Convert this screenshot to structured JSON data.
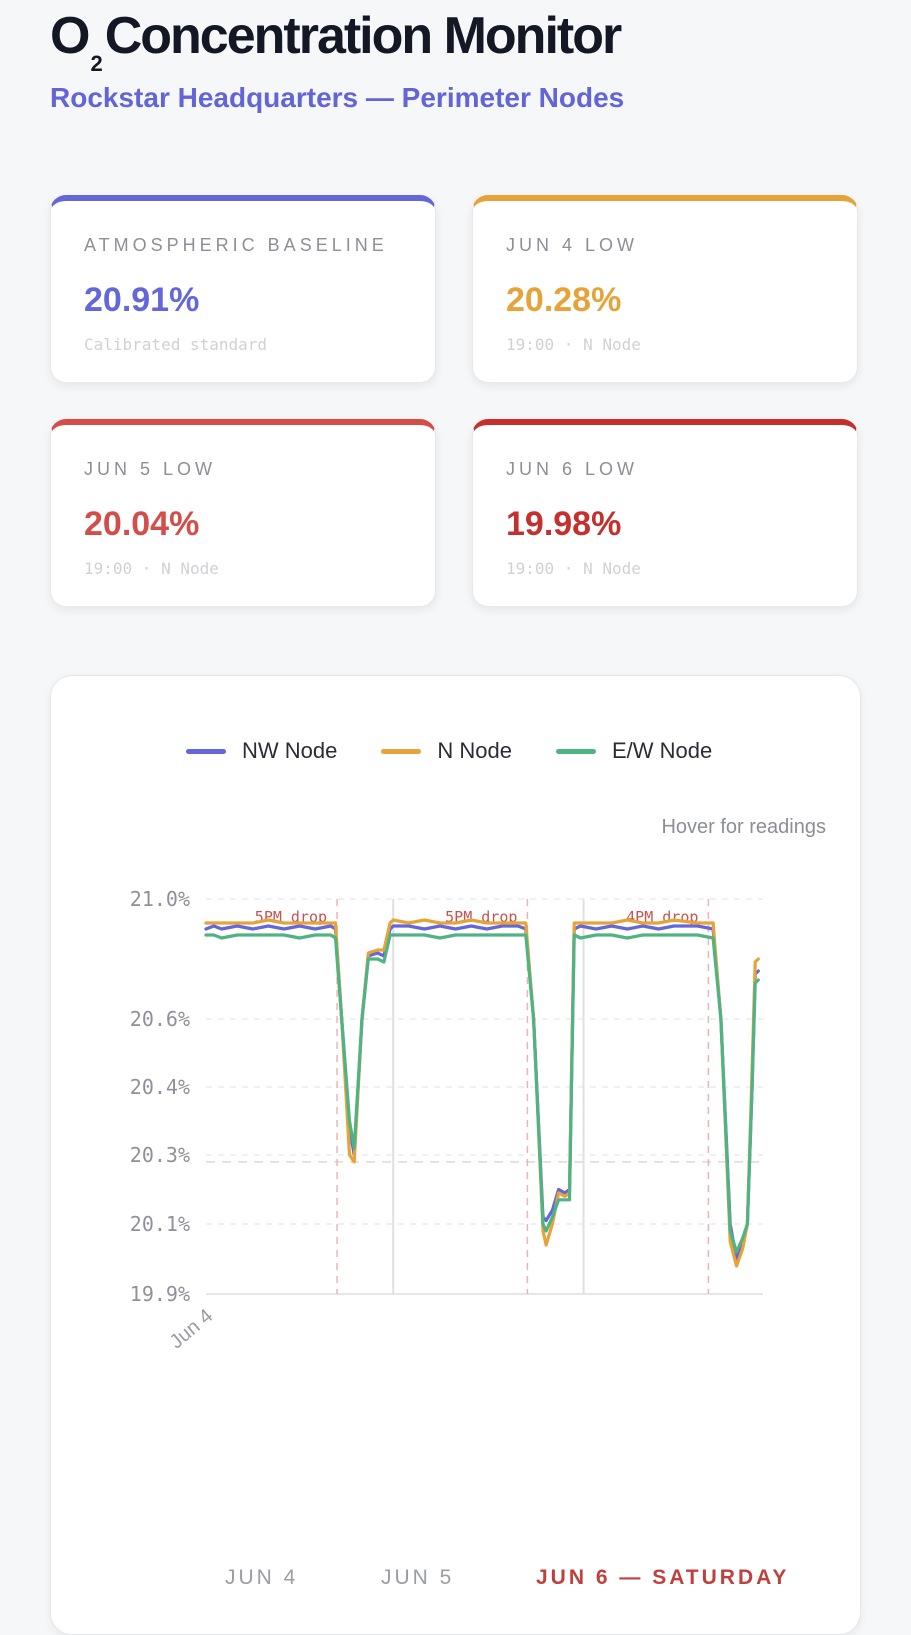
{
  "header": {
    "title_prefix": "O",
    "title_sub": "2",
    "title_main": "Concentration Monitor",
    "subtitle": "Rockstar Headquarters — Perimeter Nodes"
  },
  "cards": [
    {
      "label": "ATMOSPHERIC BASELINE",
      "value": "20.91%",
      "note": "Calibrated standard",
      "accent": "#6466d9"
    },
    {
      "label": "JUN 4 LOW",
      "value": "20.28%",
      "note": "19:00 · N Node",
      "accent": "#e6a33a"
    },
    {
      "label": "JUN 5 LOW",
      "value": "20.04%",
      "note": "19:00 · N Node",
      "accent": "#d44d48"
    },
    {
      "label": "JUN 6 LOW",
      "value": "19.98%",
      "note": "19:00 · N Node",
      "accent": "#c5302c"
    }
  ],
  "chart": {
    "hint": "Hover for readings",
    "day_tabs": [
      {
        "label": "JUN 4",
        "active": false
      },
      {
        "label": "JUN 5",
        "active": false
      },
      {
        "label": "JUN 6 — SATURDAY",
        "active": true
      }
    ]
  },
  "chart_data": {
    "type": "line",
    "x": [
      0,
      1,
      2,
      3,
      4,
      5,
      6,
      7,
      8,
      9,
      10,
      11,
      12,
      13,
      14,
      15,
      16,
      17,
      18,
      19,
      20,
      21,
      22,
      23,
      24,
      25,
      26,
      27,
      28,
      29,
      30,
      31,
      32,
      33,
      34,
      35,
      36,
      37,
      38,
      39,
      40,
      41,
      42,
      43,
      44,
      45,
      46,
      47,
      48,
      49,
      50,
      51,
      52,
      53,
      54,
      55,
      56,
      57,
      58,
      59,
      60,
      61,
      62,
      63,
      64,
      65,
      66,
      67,
      68,
      69,
      70,
      71,
      72,
      73,
      74,
      75,
      76,
      77,
      78,
      79,
      80,
      81,
      82,
      83,
      84,
      85,
      86,
      87,
      88,
      89,
      90,
      91,
      92,
      93,
      94,
      95,
      96,
      97,
      98,
      99,
      100,
      101,
      102,
      103,
      104,
      105,
      106,
      107,
      108,
      109,
      110,
      111,
      112,
      113,
      114,
      115,
      116,
      117,
      118,
      119,
      120,
      121,
      122,
      123,
      124,
      125,
      126,
      127,
      128,
      129,
      130,
      131,
      132,
      133,
      134,
      135,
      136,
      137,
      138,
      139,
      140,
      141,
      142,
      143,
      144,
      145,
      146,
      147,
      148,
      149,
      150,
      151,
      152,
      153,
      154,
      155,
      156,
      157,
      158,
      159,
      160,
      161,
      162,
      163,
      164,
      165,
      166,
      167,
      168,
      169,
      170,
      171,
      172,
      173,
      174,
      175,
      176,
      177,
      178,
      179,
      180,
      181,
      182,
      183,
      184,
      185,
      186,
      187,
      188,
      189,
      190,
      191,
      192,
      193,
      194,
      195,
      196,
      197,
      198,
      199,
      200,
      201,
      202,
      203,
      204,
      205,
      206,
      207,
      208,
      209,
      210,
      211,
      212,
      213,
      214,
      215,
      216,
      217,
      218,
      219,
      220,
      221,
      222,
      223,
      224,
      225,
      226,
      227,
      228,
      229,
      230,
      231,
      232,
      233,
      234,
      235,
      236,
      237,
      238,
      239,
      240,
      241,
      242,
      243,
      244,
      245,
      246,
      247,
      248,
      249,
      250,
      251,
      252,
      253,
      254,
      255,
      256,
      257,
      258,
      259,
      260,
      261,
      262,
      263,
      264,
      265,
      266,
      267,
      268,
      269,
      270,
      271,
      272,
      273,
      274,
      275,
      276,
      277,
      278,
      279,
      280,
      281,
      282,
      283,
      284,
      285,
      286,
      287,
      288,
      289,
      290,
      291,
      292,
      293,
      294,
      295,
      296,
      297,
      298,
      299,
      300,
      301,
      302,
      303,
      304,
      305,
      306,
      307,
      308,
      309,
      310,
      311,
      312,
      313,
      314,
      315,
      316,
      317,
      318,
      319,
      320,
      321,
      322,
      323,
      324,
      325,
      326,
      327,
      328,
      329,
      330,
      331,
      332,
      333,
      334,
      335,
      336,
      337,
      338,
      339,
      340,
      341,
      342,
      343,
      344,
      345,
      346,
      347,
      348,
      349,
      350,
      351,
      352,
      353,
      354,
      355,
      356,
      357,
      358,
      359,
      360,
      361,
      362,
      363,
      364,
      365,
      366,
      367,
      368,
      369,
      370
    ],
    "series": [
      {
        "name": "NW Node",
        "color": "#6466d9",
        "points": [
          [
            0,
            20.9
          ],
          [
            5,
            20.91
          ],
          [
            10,
            20.9
          ],
          [
            20,
            20.91
          ],
          [
            30,
            20.9
          ],
          [
            40,
            20.91
          ],
          [
            50,
            20.9
          ],
          [
            60,
            20.91
          ],
          [
            70,
            20.9
          ],
          [
            80,
            20.91
          ],
          [
            83,
            20.9
          ],
          [
            87,
            20.6
          ],
          [
            92,
            20.34
          ],
          [
            95,
            20.3
          ],
          [
            100,
            20.6
          ],
          [
            104,
            20.81
          ],
          [
            110,
            20.82
          ],
          [
            114,
            20.81
          ],
          [
            118,
            20.9
          ],
          [
            120,
            20.91
          ],
          [
            130,
            20.91
          ],
          [
            140,
            20.9
          ],
          [
            150,
            20.91
          ],
          [
            160,
            20.9
          ],
          [
            170,
            20.91
          ],
          [
            180,
            20.9
          ],
          [
            190,
            20.91
          ],
          [
            200,
            20.91
          ],
          [
            205,
            20.9
          ],
          [
            210,
            20.6
          ],
          [
            216,
            20.12
          ],
          [
            218,
            20.11
          ],
          [
            222,
            20.14
          ],
          [
            226,
            20.2
          ],
          [
            230,
            20.19
          ],
          [
            233,
            20.2
          ],
          [
            236,
            20.9
          ],
          [
            240,
            20.91
          ],
          [
            250,
            20.9
          ],
          [
            260,
            20.91
          ],
          [
            270,
            20.9
          ],
          [
            280,
            20.91
          ],
          [
            290,
            20.9
          ],
          [
            300,
            20.91
          ],
          [
            315,
            20.91
          ],
          [
            325,
            20.9
          ],
          [
            330,
            20.6
          ],
          [
            336,
            20.1
          ],
          [
            340,
            20.0
          ],
          [
            344,
            20.05
          ],
          [
            347,
            20.1
          ],
          [
            350,
            20.4
          ],
          [
            352,
            20.75
          ],
          [
            354,
            20.76
          ]
        ]
      },
      {
        "name": "N Node",
        "color": "#e6a33a",
        "points": [
          [
            0,
            20.92
          ],
          [
            5,
            20.92
          ],
          [
            10,
            20.92
          ],
          [
            20,
            20.92
          ],
          [
            30,
            20.92
          ],
          [
            40,
            20.93
          ],
          [
            50,
            20.92
          ],
          [
            60,
            20.92
          ],
          [
            70,
            20.92
          ],
          [
            80,
            20.92
          ],
          [
            83,
            20.92
          ],
          [
            87,
            20.6
          ],
          [
            92,
            20.3
          ],
          [
            95,
            20.28
          ],
          [
            100,
            20.6
          ],
          [
            104,
            20.82
          ],
          [
            110,
            20.83
          ],
          [
            114,
            20.83
          ],
          [
            118,
            20.92
          ],
          [
            120,
            20.93
          ],
          [
            130,
            20.92
          ],
          [
            140,
            20.93
          ],
          [
            150,
            20.92
          ],
          [
            160,
            20.92
          ],
          [
            170,
            20.93
          ],
          [
            180,
            20.92
          ],
          [
            190,
            20.92
          ],
          [
            200,
            20.92
          ],
          [
            205,
            20.92
          ],
          [
            210,
            20.6
          ],
          [
            216,
            20.08
          ],
          [
            218,
            20.04
          ],
          [
            222,
            20.1
          ],
          [
            226,
            20.19
          ],
          [
            230,
            20.18
          ],
          [
            233,
            20.19
          ],
          [
            236,
            20.92
          ],
          [
            240,
            20.92
          ],
          [
            250,
            20.92
          ],
          [
            260,
            20.92
          ],
          [
            270,
            20.93
          ],
          [
            280,
            20.92
          ],
          [
            290,
            20.92
          ],
          [
            300,
            20.93
          ],
          [
            315,
            20.92
          ],
          [
            325,
            20.92
          ],
          [
            330,
            20.6
          ],
          [
            336,
            20.05
          ],
          [
            340,
            19.98
          ],
          [
            344,
            20.03
          ],
          [
            347,
            20.1
          ],
          [
            350,
            20.45
          ],
          [
            352,
            20.79
          ],
          [
            354,
            20.8
          ]
        ]
      },
      {
        "name": "E/W Node",
        "color": "#4fb383",
        "points": [
          [
            0,
            20.88
          ],
          [
            5,
            20.88
          ],
          [
            10,
            20.87
          ],
          [
            20,
            20.88
          ],
          [
            30,
            20.88
          ],
          [
            40,
            20.88
          ],
          [
            50,
            20.88
          ],
          [
            60,
            20.87
          ],
          [
            70,
            20.88
          ],
          [
            80,
            20.88
          ],
          [
            83,
            20.87
          ],
          [
            87,
            20.6
          ],
          [
            92,
            20.35
          ],
          [
            95,
            20.31
          ],
          [
            100,
            20.6
          ],
          [
            104,
            20.8
          ],
          [
            110,
            20.8
          ],
          [
            114,
            20.79
          ],
          [
            118,
            20.88
          ],
          [
            120,
            20.88
          ],
          [
            130,
            20.88
          ],
          [
            140,
            20.88
          ],
          [
            150,
            20.87
          ],
          [
            160,
            20.88
          ],
          [
            170,
            20.88
          ],
          [
            180,
            20.88
          ],
          [
            190,
            20.88
          ],
          [
            200,
            20.88
          ],
          [
            205,
            20.88
          ],
          [
            210,
            20.6
          ],
          [
            216,
            20.1
          ],
          [
            218,
            20.08
          ],
          [
            222,
            20.12
          ],
          [
            226,
            20.17
          ],
          [
            230,
            20.17
          ],
          [
            233,
            20.17
          ],
          [
            236,
            20.88
          ],
          [
            240,
            20.87
          ],
          [
            250,
            20.88
          ],
          [
            260,
            20.88
          ],
          [
            270,
            20.87
          ],
          [
            280,
            20.88
          ],
          [
            290,
            20.88
          ],
          [
            300,
            20.88
          ],
          [
            315,
            20.88
          ],
          [
            325,
            20.87
          ],
          [
            330,
            20.6
          ],
          [
            336,
            20.08
          ],
          [
            340,
            20.02
          ],
          [
            344,
            20.06
          ],
          [
            347,
            20.1
          ],
          [
            350,
            20.4
          ],
          [
            352,
            20.72
          ],
          [
            354,
            20.73
          ]
        ]
      }
    ],
    "y_ticks": [
      "21.0%",
      "20.6%",
      "20.4%",
      "20.3%",
      "20.1%",
      "19.9%"
    ],
    "y_tick_values": [
      21.0,
      20.6,
      20.4,
      20.3,
      20.1,
      19.9
    ],
    "ylim": [
      19.9,
      21.0
    ],
    "x_tick_labels": [
      "Jun 4"
    ],
    "annotations": [
      {
        "text": "5PM drop",
        "x": 84
      },
      {
        "text": "5PM drop",
        "x": 206
      },
      {
        "text": "4PM drop",
        "x": 322
      }
    ],
    "day_dividers": [
      120,
      242
    ],
    "reference_line": 20.28,
    "xlim": [
      0,
      357
    ],
    "grid": true,
    "legend": "top-center"
  }
}
